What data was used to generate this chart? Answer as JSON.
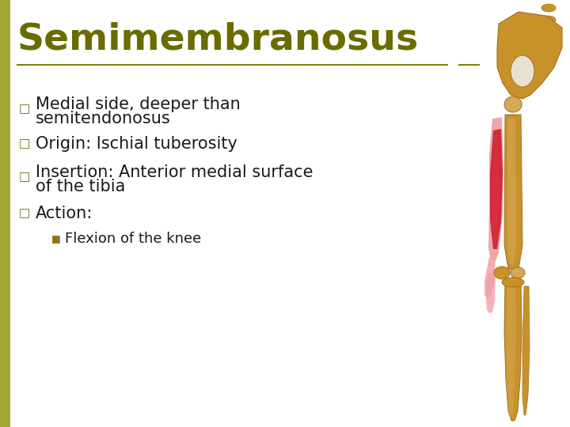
{
  "title": "Semimembranosus",
  "title_color": "#6b6b00",
  "title_fontsize": 34,
  "background_color": "#ffffff",
  "left_stripe_color": "#a0a830",
  "divider_color": "#808000",
  "bullet_color": "#6b6b00",
  "sub_bullet_color": "#8b7320",
  "body_text_color": "#1a1a1a",
  "body_fontsize": 15,
  "sub_fontsize": 13,
  "bullet_items": [
    "Medial side, deeper than\nsemitendonosus",
    "Origin: Ischial tuberosity",
    "Insertion: Anterior medial surface\nof the tibia",
    "Action:"
  ],
  "sub_bullet_items": [
    "Flexion of the knee"
  ],
  "bone_color": "#c8922a",
  "bone_light": "#d4a855",
  "bone_dark": "#a07020",
  "muscle_pink": "#f0a0a8",
  "muscle_red": "#cc2030",
  "muscle_red2": "#e03040"
}
